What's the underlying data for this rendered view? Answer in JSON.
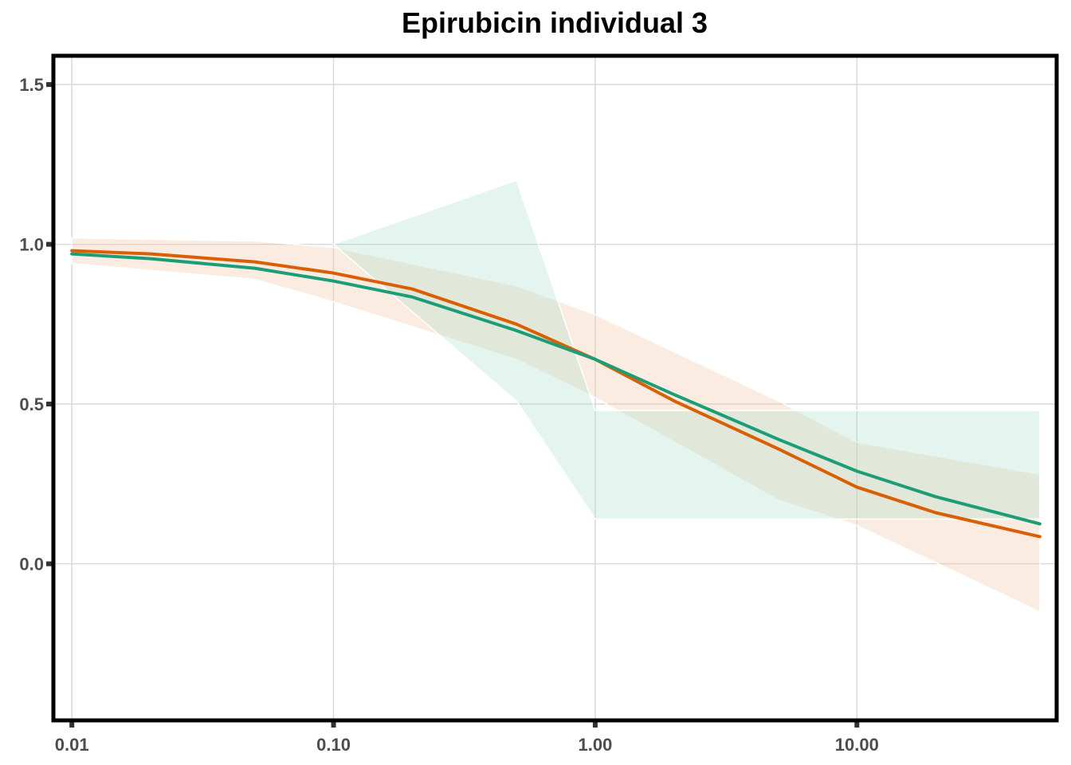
{
  "chart_data": {
    "type": "line",
    "title": "Epirubicin individual 3",
    "xlabel": "",
    "ylabel": "",
    "x_scale": "log10",
    "x_ticks": [
      0.01,
      0.1,
      1,
      10
    ],
    "x_tick_labels": [
      "0.01",
      "0.10",
      "1.00",
      "10.00"
    ],
    "y_ticks": [
      0,
      0.5,
      1,
      1.5
    ],
    "y_tick_labels": [
      "0.0",
      "0.5",
      "1.0",
      "1.5"
    ],
    "xlim": [
      0.0085,
      58
    ],
    "ylim": [
      -0.49,
      1.59
    ],
    "grid": true,
    "legend": "none",
    "bands": [
      {
        "color": "#f4c8a8",
        "opacity": 0.35,
        "upper": [
          [
            0.01,
            1.02
          ],
          [
            0.05,
            1.01
          ],
          [
            0.1,
            0.99
          ],
          [
            0.5,
            0.87
          ],
          [
            1,
            0.78
          ],
          [
            5,
            0.51
          ],
          [
            10,
            0.38
          ],
          [
            50,
            0.28
          ]
        ],
        "lower": [
          [
            0.01,
            0.94
          ],
          [
            0.05,
            0.89
          ],
          [
            0.1,
            0.82
          ],
          [
            0.5,
            0.64
          ],
          [
            1,
            0.52
          ],
          [
            5,
            0.2
          ],
          [
            10,
            0.12
          ],
          [
            50,
            -0.15
          ]
        ]
      },
      {
        "color": "#a6d9c6",
        "opacity": 0.3,
        "upper": [
          [
            0.1,
            1.0
          ],
          [
            0.5,
            1.2
          ],
          [
            1,
            0.48
          ],
          [
            5,
            0.48
          ],
          [
            10,
            0.48
          ],
          [
            50,
            0.48
          ]
        ],
        "lower": [
          [
            0.1,
            1.0
          ],
          [
            0.5,
            0.51
          ],
          [
            1,
            0.14
          ],
          [
            5,
            0.14
          ],
          [
            10,
            0.14
          ],
          [
            50,
            0.14
          ]
        ]
      }
    ],
    "series": [
      {
        "color": "#d95f02",
        "values": [
          [
            0.01,
            0.98
          ],
          [
            0.02,
            0.97
          ],
          [
            0.05,
            0.945
          ],
          [
            0.1,
            0.91
          ],
          [
            0.2,
            0.86
          ],
          [
            0.5,
            0.75
          ],
          [
            1,
            0.64
          ],
          [
            2,
            0.51
          ],
          [
            5,
            0.36
          ],
          [
            10,
            0.24
          ],
          [
            20,
            0.16
          ],
          [
            50,
            0.085
          ]
        ]
      },
      {
        "color": "#1b9e77",
        "values": [
          [
            0.01,
            0.97
          ],
          [
            0.02,
            0.955
          ],
          [
            0.05,
            0.925
          ],
          [
            0.1,
            0.885
          ],
          [
            0.2,
            0.835
          ],
          [
            0.5,
            0.73
          ],
          [
            1,
            0.64
          ],
          [
            2,
            0.53
          ],
          [
            5,
            0.39
          ],
          [
            10,
            0.29
          ],
          [
            20,
            0.21
          ],
          [
            50,
            0.125
          ]
        ]
      }
    ]
  }
}
